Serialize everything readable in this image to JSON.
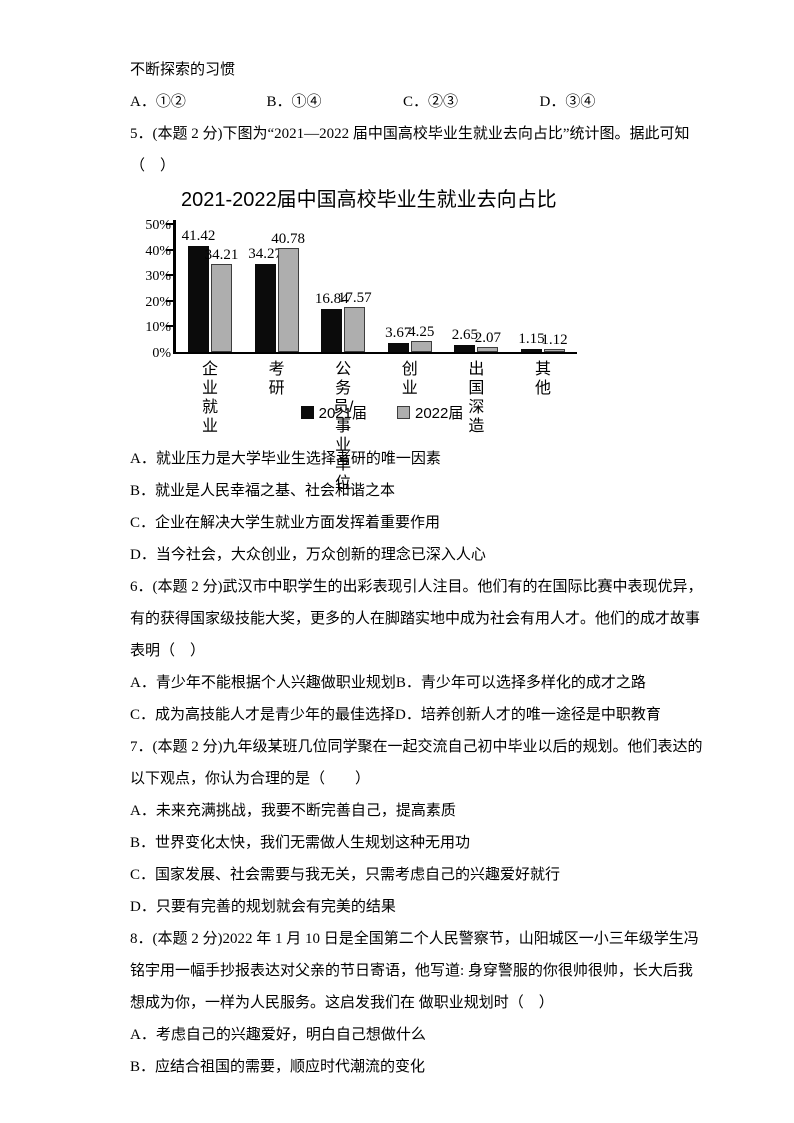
{
  "doc": {
    "intro_line": "不断探索的习惯",
    "q4_options": [
      "A．①②",
      "B．①④",
      "C．②③",
      "D．③④"
    ],
    "q5": {
      "stem_lines": [
        "5．(本题 2 分)下图为“2021—2022 届中国高校毕业生就业去向占比”统计图。据此可知",
        "（　）"
      ],
      "options": [
        "A．就业压力是大学毕业生选择考研的唯一因素",
        "B．就业是人民幸福之基、社会和谐之本",
        "C．企业在解决大学生就业方面发挥着重要作用",
        "D．当今社会，大众创业，万众创新的理念已深入人心"
      ]
    },
    "q6": {
      "stem_lines": [
        "6．(本题 2 分)武汉市中职学生的出彩表现引人注目。他们有的在国际比赛中表现优异，",
        "有的获得国家级技能大奖，更多的人在脚踏实地中成为社会有用人才。他们的成才故事",
        "表明（　）"
      ],
      "option_rows": [
        [
          "A．青少年不能根据个人兴趣做职业规划",
          "B．青少年可以选择多样化的成才之路"
        ],
        [
          "C．成为高技能人才是青少年的最佳选择",
          "D．培养创新人才的唯一途径是中职教育"
        ]
      ]
    },
    "q7": {
      "stem_lines": [
        "7．(本题 2 分)九年级某班几位同学聚在一起交流自己初中毕业以后的规划。他们表达的",
        "以下观点，你认为合理的是（　　）"
      ],
      "options": [
        "A．未来充满挑战，我要不断完善自己，提高素质",
        "B．世界变化太快，我们无需做人生规划这种无用功",
        "C．国家发展、社会需要与我无关，只需考虑自己的兴趣爱好就行",
        "D．只要有完善的规划就会有完美的结果"
      ]
    },
    "q8": {
      "stem_lines": [
        "8．(本题 2 分)2022 年 1 月 10 日是全国第二个人民警察节，山阳城区一小三年级学生冯",
        "铭宇用一幅手抄报表达对父亲的节日寄语，他写道: 身穿警服的你很帅很帅，长大后我",
        "想成为你，一样为人民服务。这启发我们在 做职业规划时（　）"
      ],
      "options": [
        "A．考虑自己的兴趣爱好，明白自己想做什么",
        "B．应结合祖国的需要，顺应时代潮流的变化"
      ]
    }
  },
  "chart_data": {
    "type": "bar",
    "title": "2021-2022届中国高校毕业生就业去向占比",
    "categories": [
      "企业就业",
      "考研",
      "公务员/\n事业单位",
      "创业",
      "出国深造",
      "其他"
    ],
    "series": [
      {
        "name": "2021届",
        "color": "#0b0b0b",
        "border": null,
        "values": [
          41.42,
          34.27,
          16.84,
          3.67,
          2.65,
          1.15
        ]
      },
      {
        "name": "2022届",
        "color": "#aeaeae",
        "border": "#3d3d3d",
        "values": [
          34.21,
          40.78,
          17.57,
          4.25,
          2.07,
          1.12
        ]
      }
    ],
    "y_ticks": [
      "0%",
      "10%",
      "20%",
      "30%",
      "40%",
      "50%"
    ],
    "ylim": [
      0,
      50
    ],
    "unit": "%",
    "xlabel": "",
    "ylabel": "",
    "grid": false,
    "legend_position": "bottom",
    "value_labels": true
  }
}
